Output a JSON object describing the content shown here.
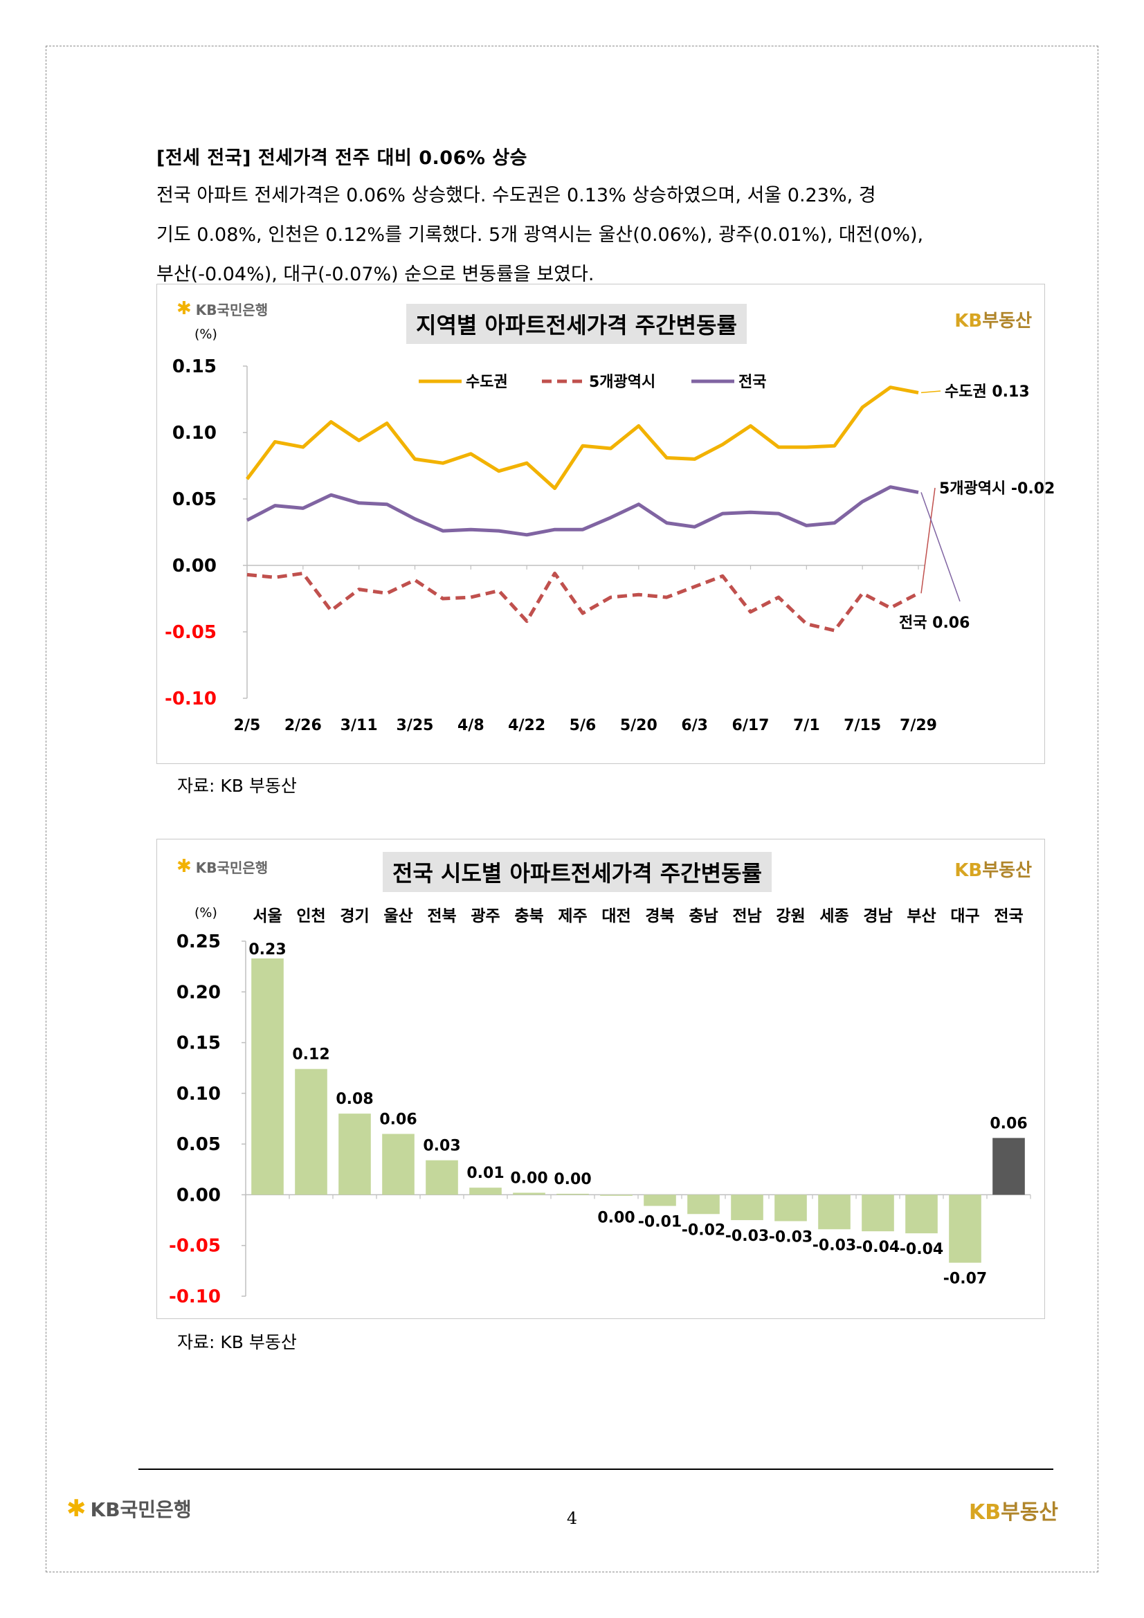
{
  "heading": "[전세 전국] 전세가격 전주 대비 0.06% 상승",
  "paragraph_lines": [
    "전국 아파트 전세가격은 0.06% 상승했다. 수도권은 0.13% 상승하였으며, 서울 0.23%, 경",
    "기도 0.08%, 인천은 0.12%를 기록했다. 5개 광역시는 울산(0.06%), 광주(0.01%), 대전(0%),",
    "부산(-0.04%), 대구(-0.07%) 순으로 변동률을 보였다."
  ],
  "logo_kb_bank": "KB국민은행",
  "logo_real_estate": {
    "kb": "KB",
    "text": "부동산"
  },
  "source_note": "자료: KB 부동산",
  "page_number": "4",
  "chart_data": [
    {
      "type": "line",
      "title": "지역별 아파트전세가격 주간변동률",
      "unit_label": "(%)",
      "ylim": [
        -0.1,
        0.15
      ],
      "yticks": [
        "0.15",
        "0.10",
        "0.05",
        "0.00",
        "-0.05",
        "-0.10"
      ],
      "ytick_values": [
        0.15,
        0.1,
        0.05,
        0.0,
        -0.05,
        -0.1
      ],
      "x_tick_labels": [
        "2/5",
        "2/26",
        "3/11",
        "3/25",
        "4/8",
        "4/22",
        "5/6",
        "5/20",
        "6/3",
        "6/17",
        "7/1",
        "7/15",
        "7/29"
      ],
      "x_tick_index": [
        0,
        2,
        4,
        6,
        8,
        10,
        12,
        14,
        16,
        18,
        20,
        22,
        24
      ],
      "legend_position": "top-center",
      "series": [
        {
          "name": "수도권",
          "color": "#f2b200",
          "dash": "solid",
          "values": [
            0.065,
            0.093,
            0.089,
            0.108,
            0.094,
            0.107,
            0.08,
            0.077,
            0.084,
            0.071,
            0.077,
            0.058,
            0.09,
            0.088,
            0.105,
            0.081,
            0.08,
            0.091,
            0.105,
            0.089,
            0.089,
            0.09,
            0.119,
            0.134,
            0.13
          ],
          "end_label": "수도권 0.13"
        },
        {
          "name": "5개광역시",
          "color": "#c0504d",
          "dash": "dashed",
          "values": [
            -0.007,
            -0.009,
            -0.006,
            -0.034,
            -0.018,
            -0.021,
            -0.011,
            -0.025,
            -0.024,
            -0.019,
            -0.042,
            -0.006,
            -0.036,
            -0.024,
            -0.022,
            -0.024,
            -0.016,
            -0.008,
            -0.035,
            -0.024,
            -0.044,
            -0.049,
            -0.021,
            -0.032,
            -0.021
          ],
          "end_label": "5개광역시 -0.02"
        },
        {
          "name": "전국",
          "color": "#8064a2",
          "dash": "solid",
          "values": [
            0.034,
            0.045,
            0.043,
            0.053,
            0.047,
            0.046,
            0.035,
            0.026,
            0.027,
            0.026,
            0.023,
            0.027,
            0.027,
            0.036,
            0.046,
            0.032,
            0.029,
            0.039,
            0.04,
            0.039,
            0.03,
            0.032,
            0.048,
            0.059,
            0.055
          ],
          "end_label": "전국 0.06"
        }
      ]
    },
    {
      "type": "bar",
      "title": "전국 시도별 아파트전세가격 주간변동률",
      "unit_label": "(%)",
      "ylim": [
        -0.1,
        0.25
      ],
      "yticks": [
        "0.25",
        "0.20",
        "0.15",
        "0.10",
        "0.05",
        "0.00",
        "-0.05",
        "-0.10"
      ],
      "ytick_values": [
        0.25,
        0.2,
        0.15,
        0.1,
        0.05,
        0.0,
        -0.05,
        -0.1
      ],
      "categories": [
        "서울",
        "인천",
        "경기",
        "울산",
        "전북",
        "광주",
        "충북",
        "제주",
        "대전",
        "경북",
        "충남",
        "전남",
        "강원",
        "세종",
        "경남",
        "부산",
        "대구",
        "전국"
      ],
      "values": [
        0.233,
        0.124,
        0.08,
        0.06,
        0.034,
        0.007,
        0.002,
        0.001,
        -0.001,
        -0.011,
        -0.019,
        -0.025,
        -0.026,
        -0.034,
        -0.036,
        -0.038,
        -0.067,
        0.056
      ],
      "value_labels": [
        "0.23",
        "0.12",
        "0.08",
        "0.06",
        "0.03",
        "0.01",
        "0.00",
        "0.00",
        "0.00",
        "-0.01",
        "-0.02",
        "-0.03",
        "-0.03",
        "-0.03",
        "-0.04",
        "-0.04",
        "-0.07",
        "0.06"
      ],
      "bar_color": "#c4d79b",
      "highlight_color": "#595959"
    }
  ]
}
